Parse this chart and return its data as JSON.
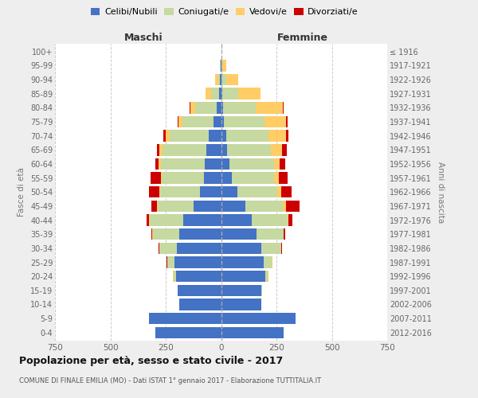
{
  "age_groups": [
    "100+",
    "95-99",
    "90-94",
    "85-89",
    "80-84",
    "75-79",
    "70-74",
    "65-69",
    "60-64",
    "55-59",
    "50-54",
    "45-49",
    "40-44",
    "35-39",
    "30-34",
    "25-29",
    "20-24",
    "15-19",
    "10-14",
    "5-9",
    "0-4"
  ],
  "birth_years": [
    "≤ 1916",
    "1917-1921",
    "1922-1926",
    "1927-1931",
    "1932-1936",
    "1937-1941",
    "1942-1946",
    "1947-1951",
    "1952-1956",
    "1957-1961",
    "1962-1966",
    "1967-1971",
    "1972-1976",
    "1977-1981",
    "1982-1986",
    "1987-1991",
    "1992-1996",
    "1997-2001",
    "2002-2006",
    "2007-2011",
    "2012-2016"
  ],
  "maschi": {
    "celibi": [
      0,
      2,
      5,
      8,
      18,
      35,
      55,
      65,
      72,
      78,
      95,
      125,
      170,
      190,
      200,
      210,
      205,
      195,
      190,
      325,
      295
    ],
    "coniugati": [
      0,
      2,
      8,
      38,
      98,
      138,
      178,
      198,
      200,
      190,
      180,
      162,
      152,
      118,
      78,
      33,
      10,
      2,
      0,
      0,
      0
    ],
    "vedovi": [
      0,
      2,
      14,
      24,
      24,
      18,
      18,
      14,
      10,
      4,
      4,
      4,
      2,
      2,
      1,
      1,
      1,
      0,
      0,
      0,
      0
    ],
    "divorziati": [
      0,
      0,
      0,
      0,
      2,
      4,
      8,
      12,
      16,
      48,
      48,
      24,
      14,
      6,
      4,
      2,
      1,
      0,
      0,
      0,
      0
    ]
  },
  "femmine": {
    "nubili": [
      0,
      2,
      3,
      4,
      8,
      13,
      22,
      28,
      38,
      48,
      72,
      108,
      138,
      160,
      182,
      192,
      198,
      182,
      182,
      335,
      282
    ],
    "coniugate": [
      0,
      4,
      22,
      75,
      150,
      182,
      192,
      198,
      200,
      190,
      180,
      170,
      162,
      122,
      88,
      38,
      14,
      2,
      0,
      0,
      0
    ],
    "vedove": [
      2,
      18,
      52,
      98,
      122,
      98,
      78,
      48,
      28,
      22,
      18,
      14,
      4,
      2,
      2,
      1,
      1,
      0,
      0,
      0,
      0
    ],
    "divorziate": [
      0,
      0,
      0,
      0,
      4,
      8,
      12,
      22,
      22,
      42,
      48,
      62,
      18,
      6,
      4,
      2,
      1,
      0,
      0,
      0,
      0
    ]
  },
  "colors": {
    "celibi": "#4472C4",
    "coniugati": "#C5D9A0",
    "vedovi": "#FFCC66",
    "divorziati": "#CC0000"
  },
  "legend_labels": [
    "Celibi/Nubili",
    "Coniugati/e",
    "Vedovi/e",
    "Divorziati/e"
  ],
  "xlim": 750,
  "title": "Popolazione per età, sesso e stato civile - 2017",
  "subtitle": "COMUNE DI FINALE EMILIA (MO) - Dati ISTAT 1° gennaio 2017 - Elaborazione TUTTITALIA.IT",
  "ylabel_left": "Fasce di età",
  "ylabel_right": "Anni di nascita",
  "label_maschi": "Maschi",
  "label_femmine": "Femmine",
  "bg_color": "#eeeeee",
  "plot_bg_color": "#ffffff"
}
